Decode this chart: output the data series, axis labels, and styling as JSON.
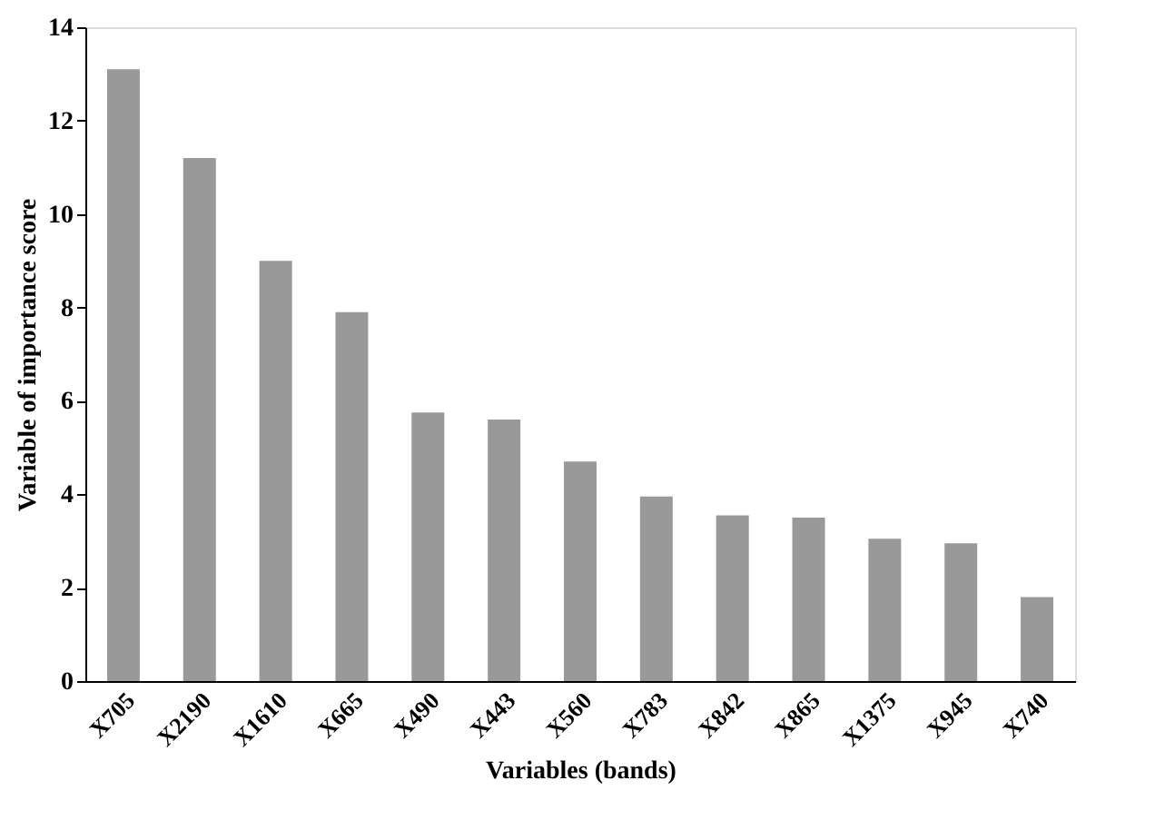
{
  "chart_data": {
    "type": "bar",
    "xlabel": "Variables (bands)",
    "ylabel": "Variable  of importance  score",
    "categories": [
      "X705",
      "X2190",
      "X1610",
      "X665",
      "X490",
      "X443",
      "X560",
      "X783",
      "X842",
      "X865",
      "X1375",
      "X945",
      "X740"
    ],
    "values": [
      13.1,
      11.2,
      9.0,
      7.9,
      5.75,
      5.6,
      4.7,
      3.95,
      3.55,
      3.5,
      3.05,
      2.95,
      1.8
    ],
    "color": "#999999",
    "ylim": [
      0,
      14
    ],
    "yticks": [
      0,
      2,
      4,
      6,
      8,
      10,
      12,
      14
    ],
    "grid": false,
    "legend": false
  }
}
